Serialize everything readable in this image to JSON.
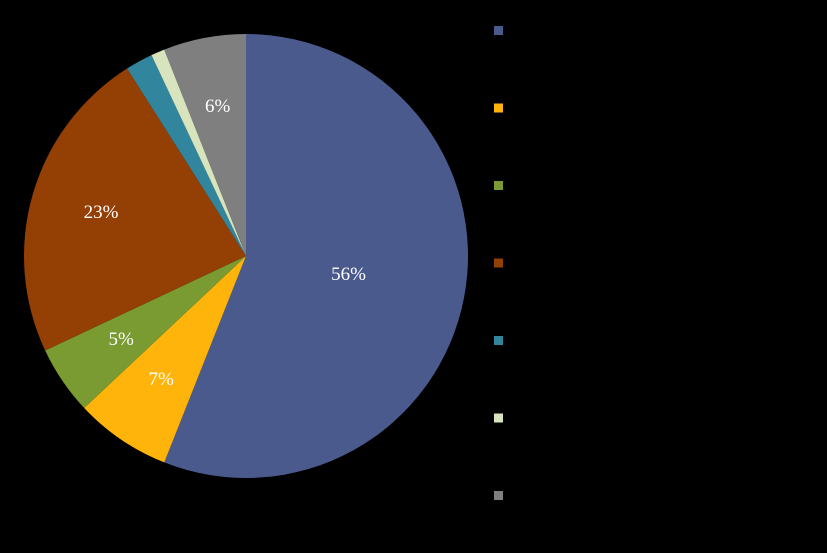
{
  "chart_data": {
    "type": "pie",
    "title": "",
    "series": [
      {
        "name": "",
        "value": 56,
        "label": "56%",
        "color": "#4A5A8C"
      },
      {
        "name": "",
        "value": 7,
        "label": "7%",
        "color": "#FFB40C"
      },
      {
        "name": "",
        "value": 5,
        "label": "5%",
        "color": "#7A9A32"
      },
      {
        "name": "",
        "value": 23,
        "label": "23%",
        "color": "#943F04"
      },
      {
        "name": "",
        "value": 2,
        "label": "",
        "color": "#31859C"
      },
      {
        "name": "",
        "value": 1,
        "label": "",
        "color": "#D7E4BD"
      },
      {
        "name": "",
        "value": 6,
        "label": "6%",
        "color": "#7F7F7F"
      }
    ],
    "start_angle_deg": 0,
    "direction": "clockwise",
    "legend": {
      "placement": "right"
    },
    "label_color": "#FFFFFF"
  }
}
